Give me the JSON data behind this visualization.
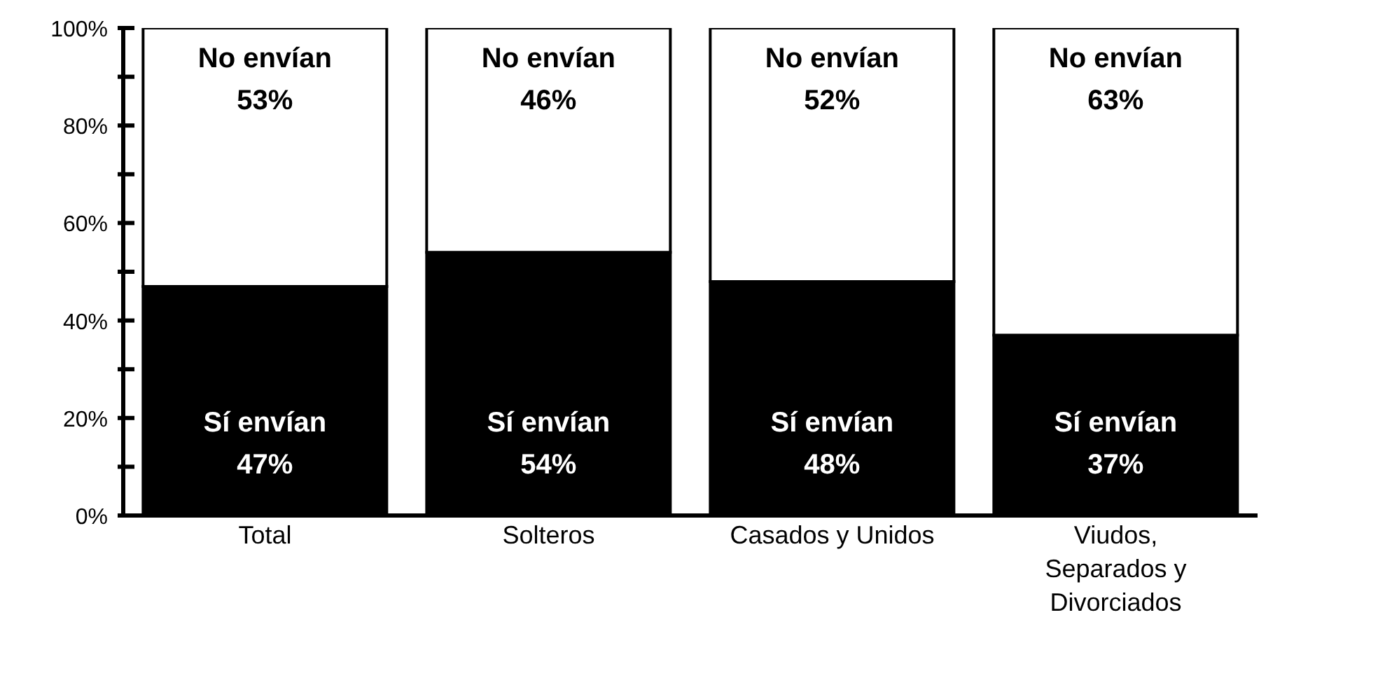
{
  "chart_data": {
    "type": "bar",
    "stacked": true,
    "categories": [
      "Total",
      "Solteros",
      "Casados y Unidos",
      "Viudos, Separados y Divorciados"
    ],
    "series": [
      {
        "name": "Sí envían",
        "color": "#000000",
        "values": [
          47,
          54,
          48,
          37
        ],
        "value_labels": [
          "47%",
          "54%",
          "48%",
          "37%"
        ]
      },
      {
        "name": "No envían",
        "color": "#ffffff",
        "values": [
          53,
          46,
          52,
          63
        ],
        "value_labels": [
          "53%",
          "46%",
          "52%",
          "63%"
        ]
      }
    ],
    "ylim": [
      0,
      100
    ],
    "yticks": [
      {
        "value": 0,
        "label": "0%"
      },
      {
        "value": 10,
        "label": null
      },
      {
        "value": 20,
        "label": "20%"
      },
      {
        "value": 30,
        "label": null
      },
      {
        "value": 40,
        "label": "40%"
      },
      {
        "value": 50,
        "label": null
      },
      {
        "value": 60,
        "label": "60%"
      },
      {
        "value": 70,
        "label": null
      },
      {
        "value": 80,
        "label": "80%"
      },
      {
        "value": 90,
        "label": null
      },
      {
        "value": 100,
        "label": "100%"
      }
    ],
    "grid": false,
    "legend": false
  }
}
